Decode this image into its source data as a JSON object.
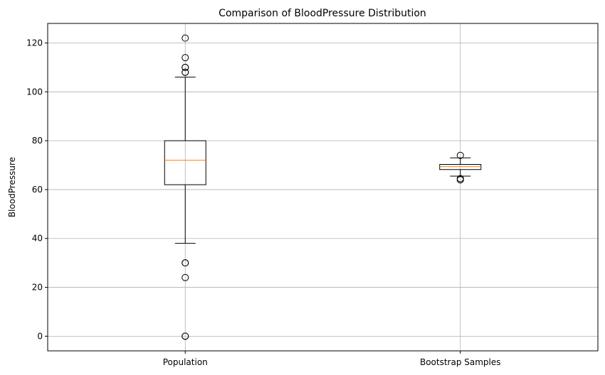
{
  "chart_data": {
    "type": "box",
    "title": "Comparison of BloodPressure Distribution",
    "xlabel": "",
    "ylabel": "BloodPressure",
    "ylim": [
      -6,
      128
    ],
    "yticks": [
      0,
      20,
      40,
      60,
      80,
      100,
      120
    ],
    "grid": true,
    "colors": {
      "box": "#000000",
      "median": "#ff7f0e",
      "grid": "#b0b0b0"
    },
    "categories": [
      "Population",
      "Bootstrap Samples"
    ],
    "boxes": [
      {
        "name": "Population",
        "whisker_low": 38,
        "q1": 62,
        "median": 72,
        "q3": 80,
        "whisker_high": 106,
        "outliers": [
          0,
          0,
          24,
          30,
          30,
          108,
          108,
          110,
          110,
          114,
          122
        ]
      },
      {
        "name": "Bootstrap Samples",
        "whisker_low": 65.5,
        "q1": 68.2,
        "median": 69.4,
        "q3": 70.3,
        "whisker_high": 73,
        "outliers": [
          64,
          64.5,
          74
        ]
      }
    ]
  }
}
